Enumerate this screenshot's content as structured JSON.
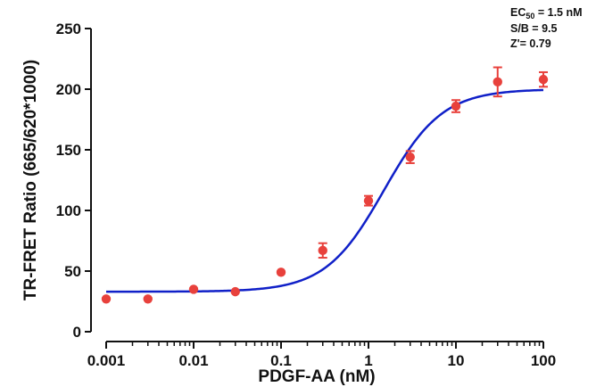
{
  "chart_data": {
    "type": "scatter",
    "xscale": "log",
    "xlabel": "PDGF-AA (nM)",
    "ylabel": "TR-FRET Ratio (665/620*1000)",
    "xlim": [
      0.001,
      100
    ],
    "ylim": [
      0,
      250
    ],
    "xticks": [
      0.001,
      0.01,
      0.1,
      1,
      10,
      100
    ],
    "xtick_labels": [
      "0.001",
      "0.01",
      "0.1",
      "1",
      "10",
      "100"
    ],
    "yticks": [
      0,
      50,
      100,
      150,
      200,
      250
    ],
    "ytick_labels": [
      "0",
      "50",
      "100",
      "150",
      "200",
      "250"
    ],
    "grid": false,
    "annotations": {
      "ec50_prefix": "EC",
      "ec50_sub": "50",
      "ec50_rest": " = 1.5 nM",
      "sb": "S/B = 9.5",
      "z": "Z'= 0.79"
    },
    "points": [
      {
        "x": 0.001,
        "y": 27,
        "err": 0
      },
      {
        "x": 0.003,
        "y": 27,
        "err": 0
      },
      {
        "x": 0.01,
        "y": 35,
        "err": 0
      },
      {
        "x": 0.03,
        "y": 33,
        "err": 0
      },
      {
        "x": 0.1,
        "y": 49,
        "err": 0
      },
      {
        "x": 0.3,
        "y": 67,
        "err": 6
      },
      {
        "x": 1,
        "y": 108,
        "err": 4
      },
      {
        "x": 3,
        "y": 144,
        "err": 5
      },
      {
        "x": 10,
        "y": 186,
        "err": 5
      },
      {
        "x": 30,
        "y": 206,
        "err": 12
      },
      {
        "x": 100,
        "y": 208,
        "err": 6
      }
    ],
    "fit": {
      "bottom": 33,
      "top": 200,
      "ec50": 1.5,
      "hill": 1.3
    },
    "colors": {
      "points": "#e8413c",
      "fit": "#1020c8",
      "axis": "#111111"
    }
  }
}
